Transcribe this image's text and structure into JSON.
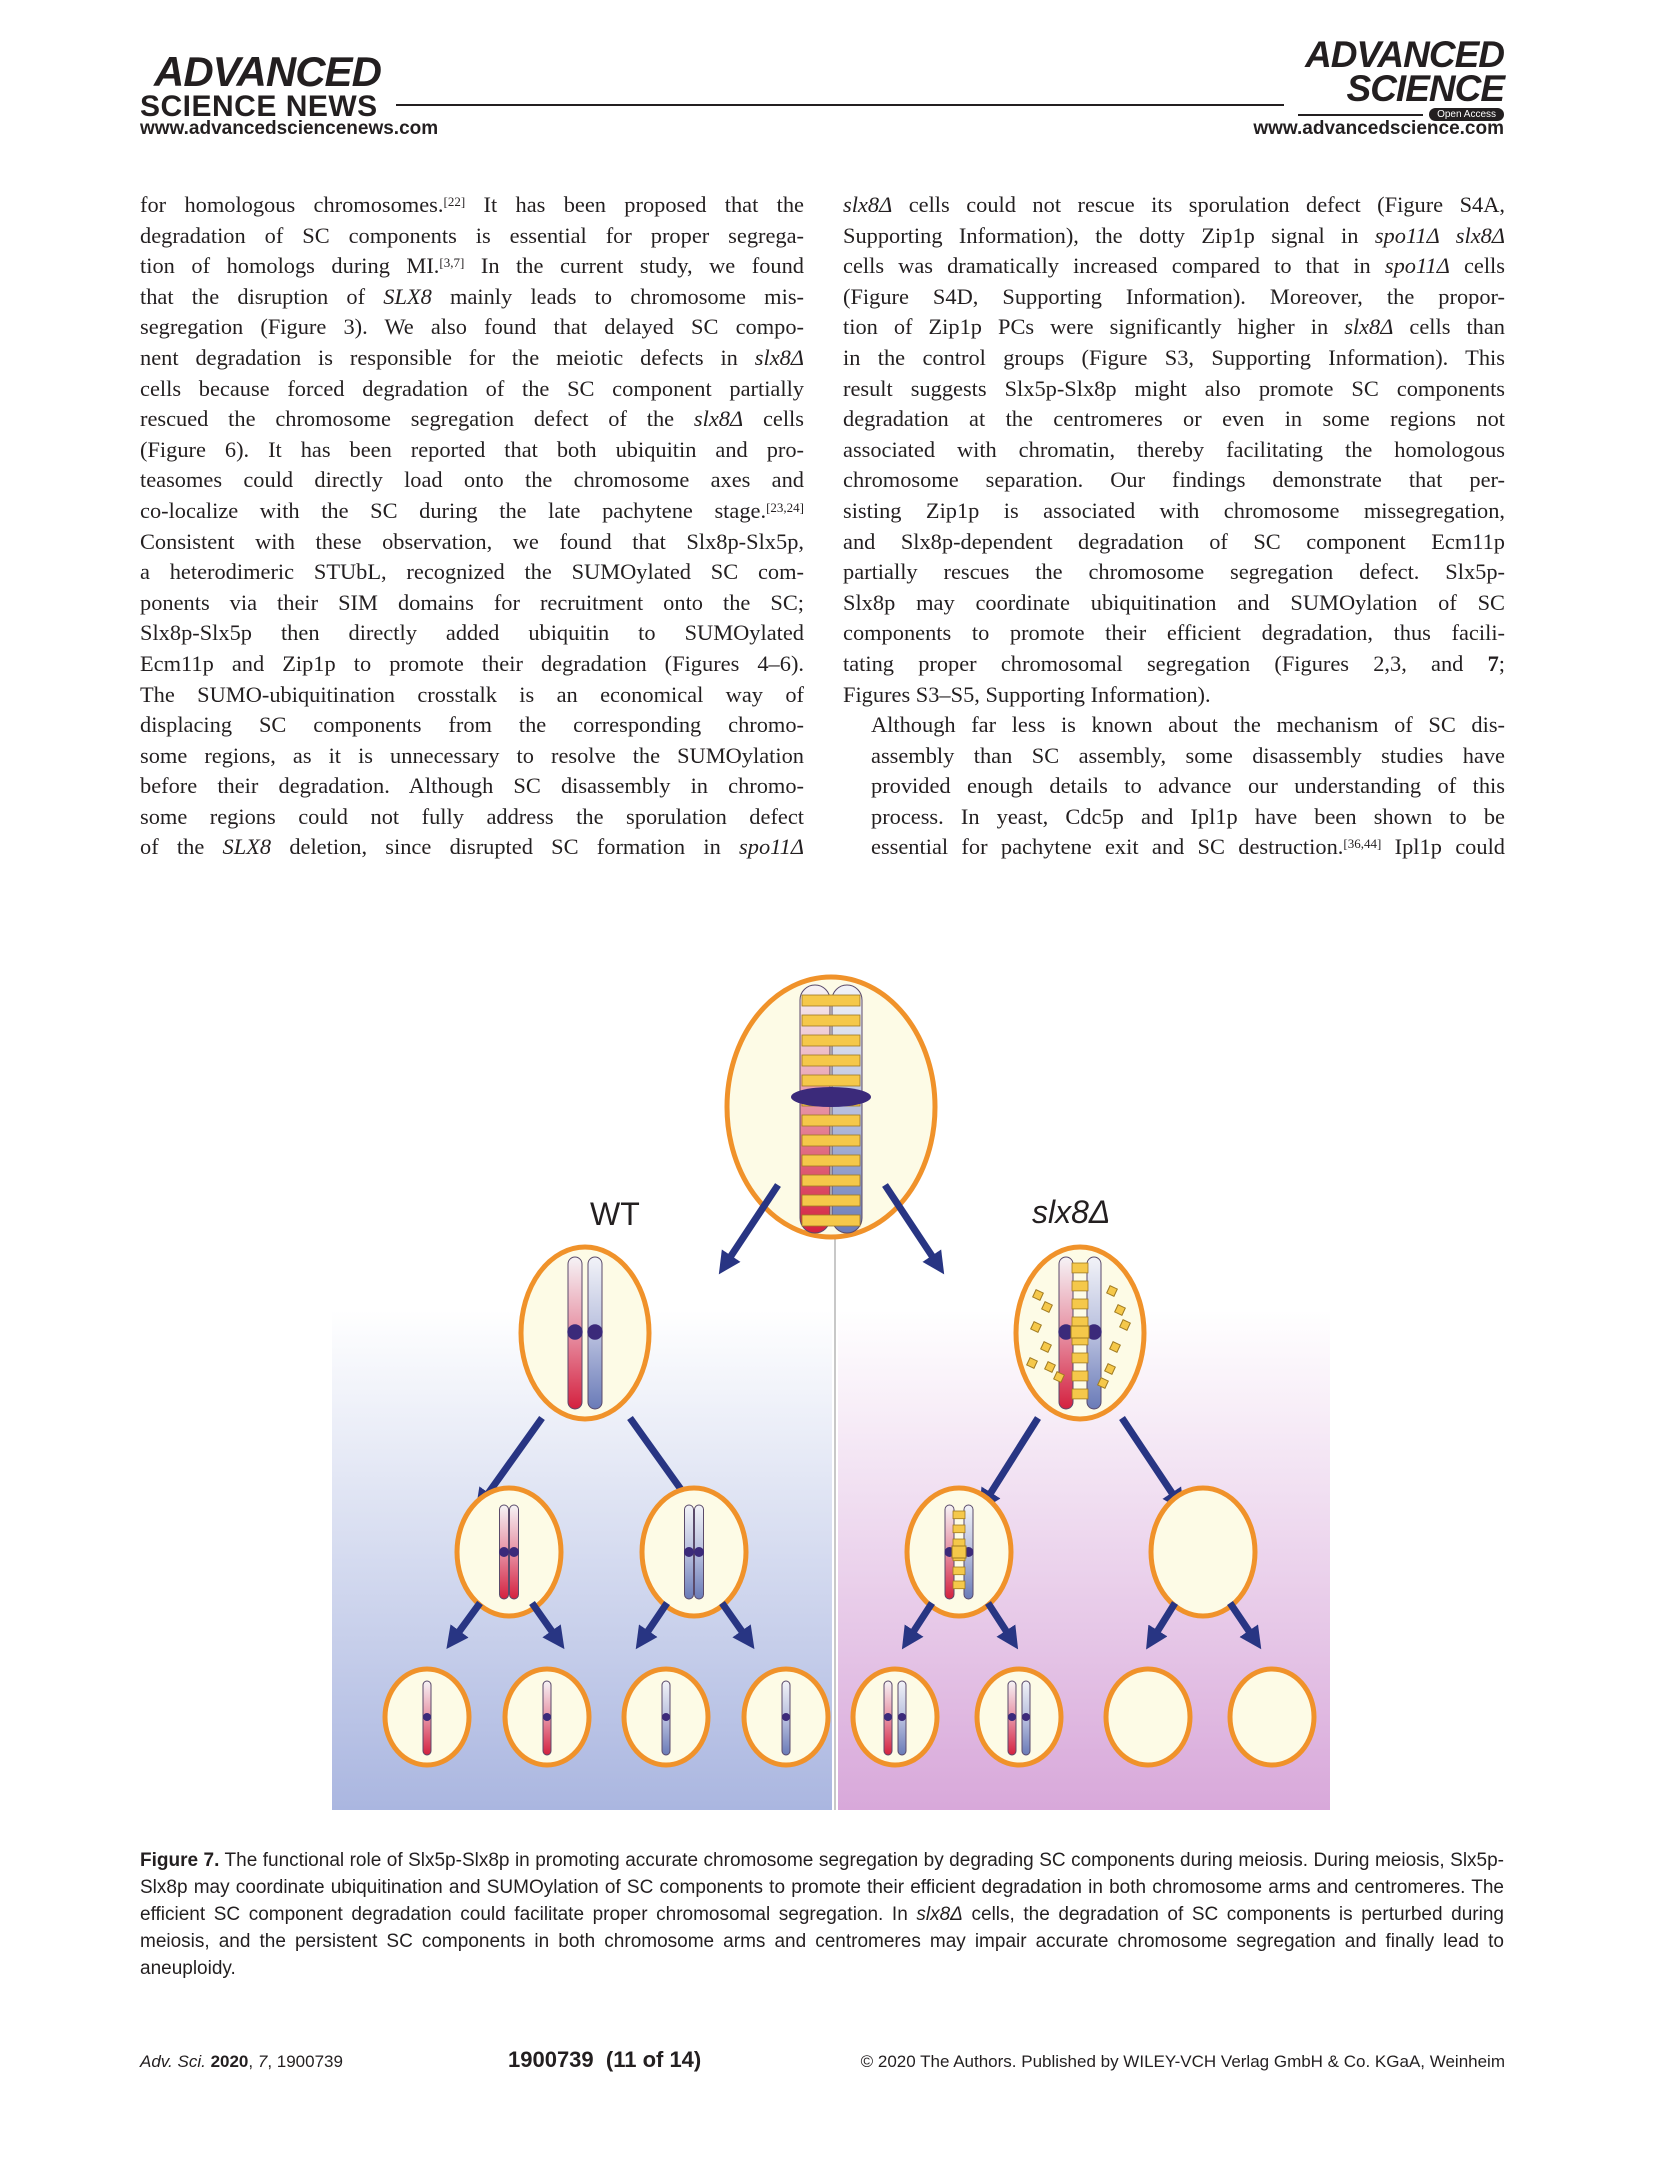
{
  "header": {
    "left_logo_line1": "ADVANCED",
    "left_logo_line2": "SCIENCE NEWS",
    "left_url": "www.advancedsciencenews.com",
    "right_logo_line1": "ADVANCED",
    "right_logo_line2": "SCIENCE",
    "right_badge": "Open Access",
    "right_url": "www.advancedscience.com"
  },
  "left_column": {
    "paragraphs": [
      [
        "for homologous chromosomes.<sup>[22]</sup> It has been proposed that the",
        "degradation of SC components is essential for proper segrega-",
        "tion of homologs during MI.<sup>[3,7]</sup> In the current study, we found",
        "that the disruption of <i>SLX8</i> mainly leads to chromosome mis-",
        "segregation (Figure 3). We also found that delayed SC compo-",
        "nent degradation is responsible for the meiotic defects in <i>slx8Δ</i>",
        "cells because forced degradation of the SC component partially",
        "rescued the chromosome segregation defect of the <i>slx8Δ</i> cells",
        "(Figure 6). It has been reported that both ubiquitin and pro-",
        "teasomes could directly load onto the chromosome axes and",
        "co-localize with the SC during the late pachytene stage.<sup>[23,24]</sup>",
        "Consistent with these observation, we found that Slx8p-Slx5p,",
        "a heterodimeric STUbL, recognized the SUMOylated SC com-",
        "ponents via their SIM domains for recruitment onto the SC;",
        "Slx8p-Slx5p then directly added ubiquitin to SUMOylated",
        "Ecm11p and Zip1p to promote their degradation (Figures 4–6).",
        "The SUMO-ubiquitination crosstalk is an economical way of",
        "displacing SC components from the corresponding chromo-",
        "some regions, as it is unnecessary to resolve the SUMOylation",
        "before their degradation. Although SC disassembly in chromo-",
        "some regions could not fully address the sporulation defect",
        "of the <i>SLX8</i> deletion, since disrupted SC formation in <i>spo11Δ</i>"
      ]
    ]
  },
  "right_column": {
    "paragraphs": [
      [
        "<i>slx8Δ</i> cells could not rescue its sporulation defect (Figure S4A,",
        "Supporting Information), the dotty Zip1p signal in <i>spo11Δ slx8Δ</i>",
        "cells was dramatically increased compared to that in <i>spo11Δ</i> cells",
        "(Figure S4D, Supporting Information). Moreover, the propor-",
        "tion of Zip1p PCs were significantly higher in <i>slx8Δ</i> cells than",
        "in the control groups (Figure S3, Supporting Information). This",
        "result suggests Slx5p-Slx8p might also promote SC components",
        "degradation at the centromeres or even in some regions not",
        "associated with chromatin, thereby facilitating the homologous",
        "chromosome separation. Our findings demonstrate that per-",
        "sisting Zip1p is associated with chromosome missegregation,",
        "and Slx8p-dependent degradation of SC component Ecm11p",
        "partially rescues the chromosome segregation defect. Slx5p-",
        "Slx8p may coordinate ubiquitination and SUMOylation of SC",
        "components to promote their efficient degradation, thus facili-",
        "tating proper chromosomal segregation (Figures 2,3, and <b>7</b>;",
        "Figures S3–S5, Supporting Information)."
      ],
      [
        "Although far less is known about the mechanism of SC dis-",
        "assembly than SC assembly, some disassembly studies have",
        "provided enough details to advance our understanding of this",
        "process. In yeast, Cdc5p and Ipl1p have been shown to be",
        "essential for pachytene exit and SC destruction.<sup>[36,44]</sup> Ipl1p could"
      ]
    ]
  },
  "figure": {
    "label_wt": "WT",
    "label_mut": "slx8Δ",
    "colors": {
      "cell_border": "#f0922a",
      "cell_fill": "#fdfbe6",
      "arrow": "#283583",
      "red_chrom": "#d4213f",
      "blue_chrom": "#6a7bb8",
      "sc_yellow": "#f5c84a",
      "centromere": "#3b2a7a",
      "wt_bg_bottom": "#aab6e0",
      "mut_bg_bottom": "#d8a8da"
    }
  },
  "caption": {
    "label": "Figure 7.",
    "text": "The functional role of Slx5p-Slx8p in promoting accurate chromosome segregation by degrading SC components during meiosis. During meiosis, Slx5p-Slx8p may coordinate ubiquitination and SUMOylation of SC components to promote their efficient degradation in both chromosome arms and centromeres. The efficient SC component degradation could facilitate proper chromosomal segregation. In slx8Δ cells, the degradation of SC components is perturbed during meiosis, and the persistent SC components in both chromosome arms and centromeres may impair accurate chromosome segregation and finally lead to aneuploidy."
  },
  "footer": {
    "journal": "Adv. Sci.",
    "year": "2020",
    "volume": "7",
    "article": "1900739",
    "center": "1900739  (11 of 14)",
    "right": "© 2020 The Authors. Published by WILEY-VCH Verlag GmbH & Co. KGaA, Weinheim"
  }
}
